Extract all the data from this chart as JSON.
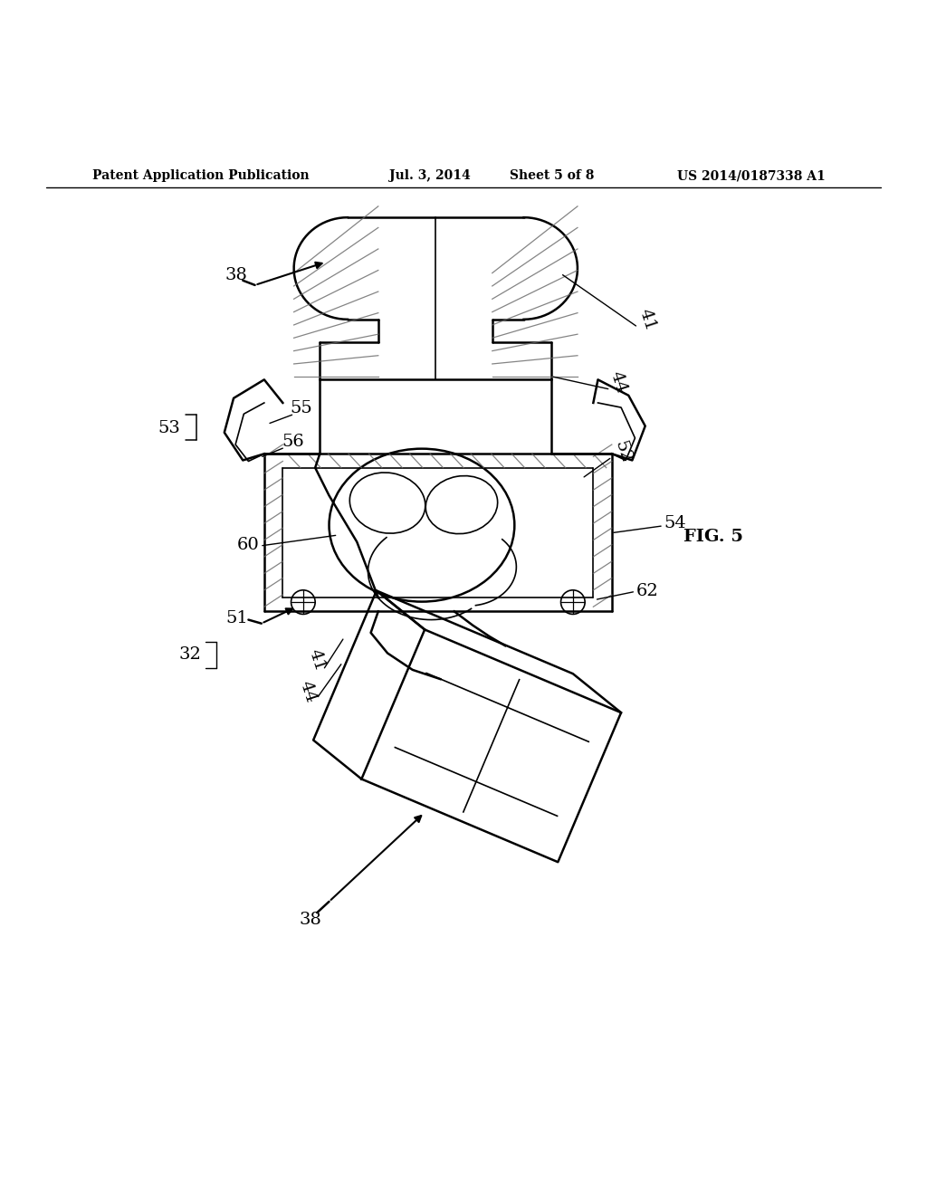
{
  "bg_color": "#ffffff",
  "line_color": "#000000",
  "header_text": "Patent Application Publication",
  "header_date": "Jul. 3, 2014",
  "header_sheet": "Sheet 5 of 8",
  "header_patent": "US 2014/0187338 A1",
  "fig_label": "FIG. 5",
  "label_fontsize": 14,
  "header_fontsize": 10
}
